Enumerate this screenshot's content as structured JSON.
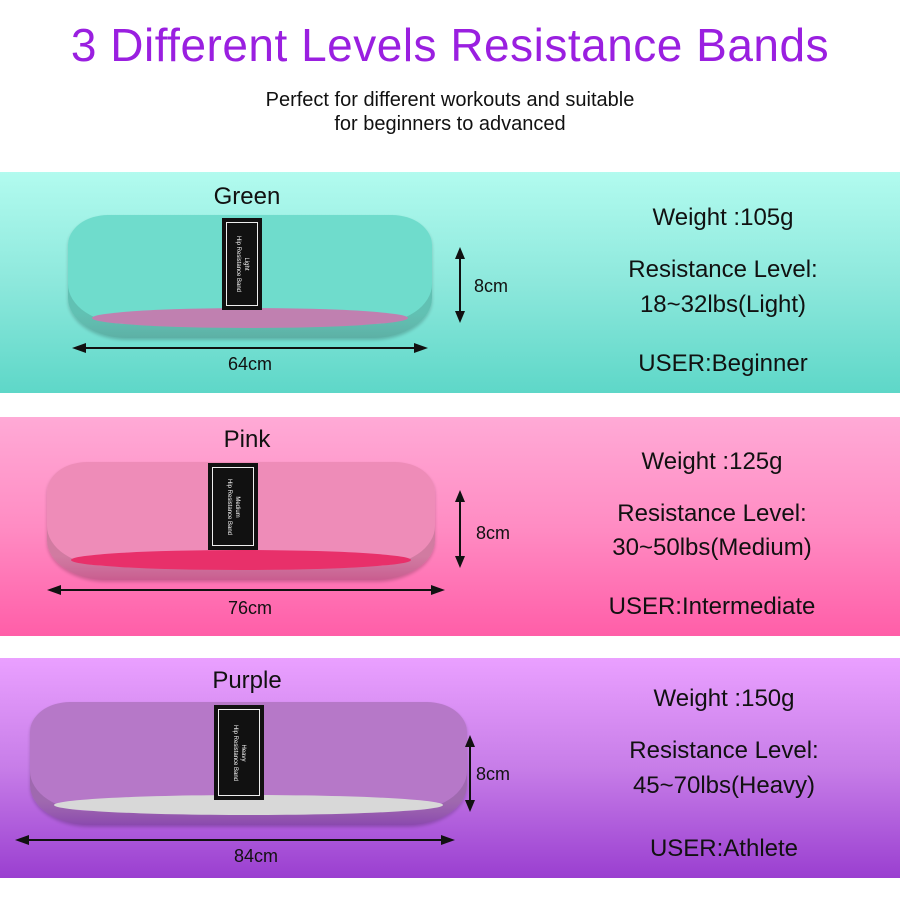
{
  "title": "3 Different Levels Resistance Bands",
  "subtitle": [
    "Perfect for different workouts and suitable",
    "for beginners to advanced"
  ],
  "bands": [
    {
      "name": "Green",
      "tag": [
        "Light",
        "Hip Resistance Band"
      ],
      "height": "8cm",
      "length": "64cm",
      "weight": "Weight :105g",
      "resistance_label": "Resistance Level:",
      "resistance": "18~32lbs(Light)",
      "user": "USER:Beginner",
      "color": "#6fdccc",
      "inner_color": "#c080b0"
    },
    {
      "name": "Pink",
      "tag": [
        "Medium",
        "Hip Resistance Band"
      ],
      "height": "8cm",
      "length": "76cm",
      "weight": "Weight :125g",
      "resistance_label": "Resistance Level:",
      "resistance": "30~50lbs(Medium)",
      "user": "USER:Intermediate",
      "color": "#ee8cb8",
      "inner_color": "#e8306a"
    },
    {
      "name": "Purple",
      "tag": [
        "Heavy",
        "Hip Resistance Band"
      ],
      "height": "8cm",
      "length": "84cm",
      "weight": "Weight :150g",
      "resistance_label": "Resistance Level:",
      "resistance": "45~70lbs(Heavy)",
      "user": "USER:Athlete",
      "color": "#b678c8",
      "inner_color": "#d8d8d8"
    }
  ]
}
